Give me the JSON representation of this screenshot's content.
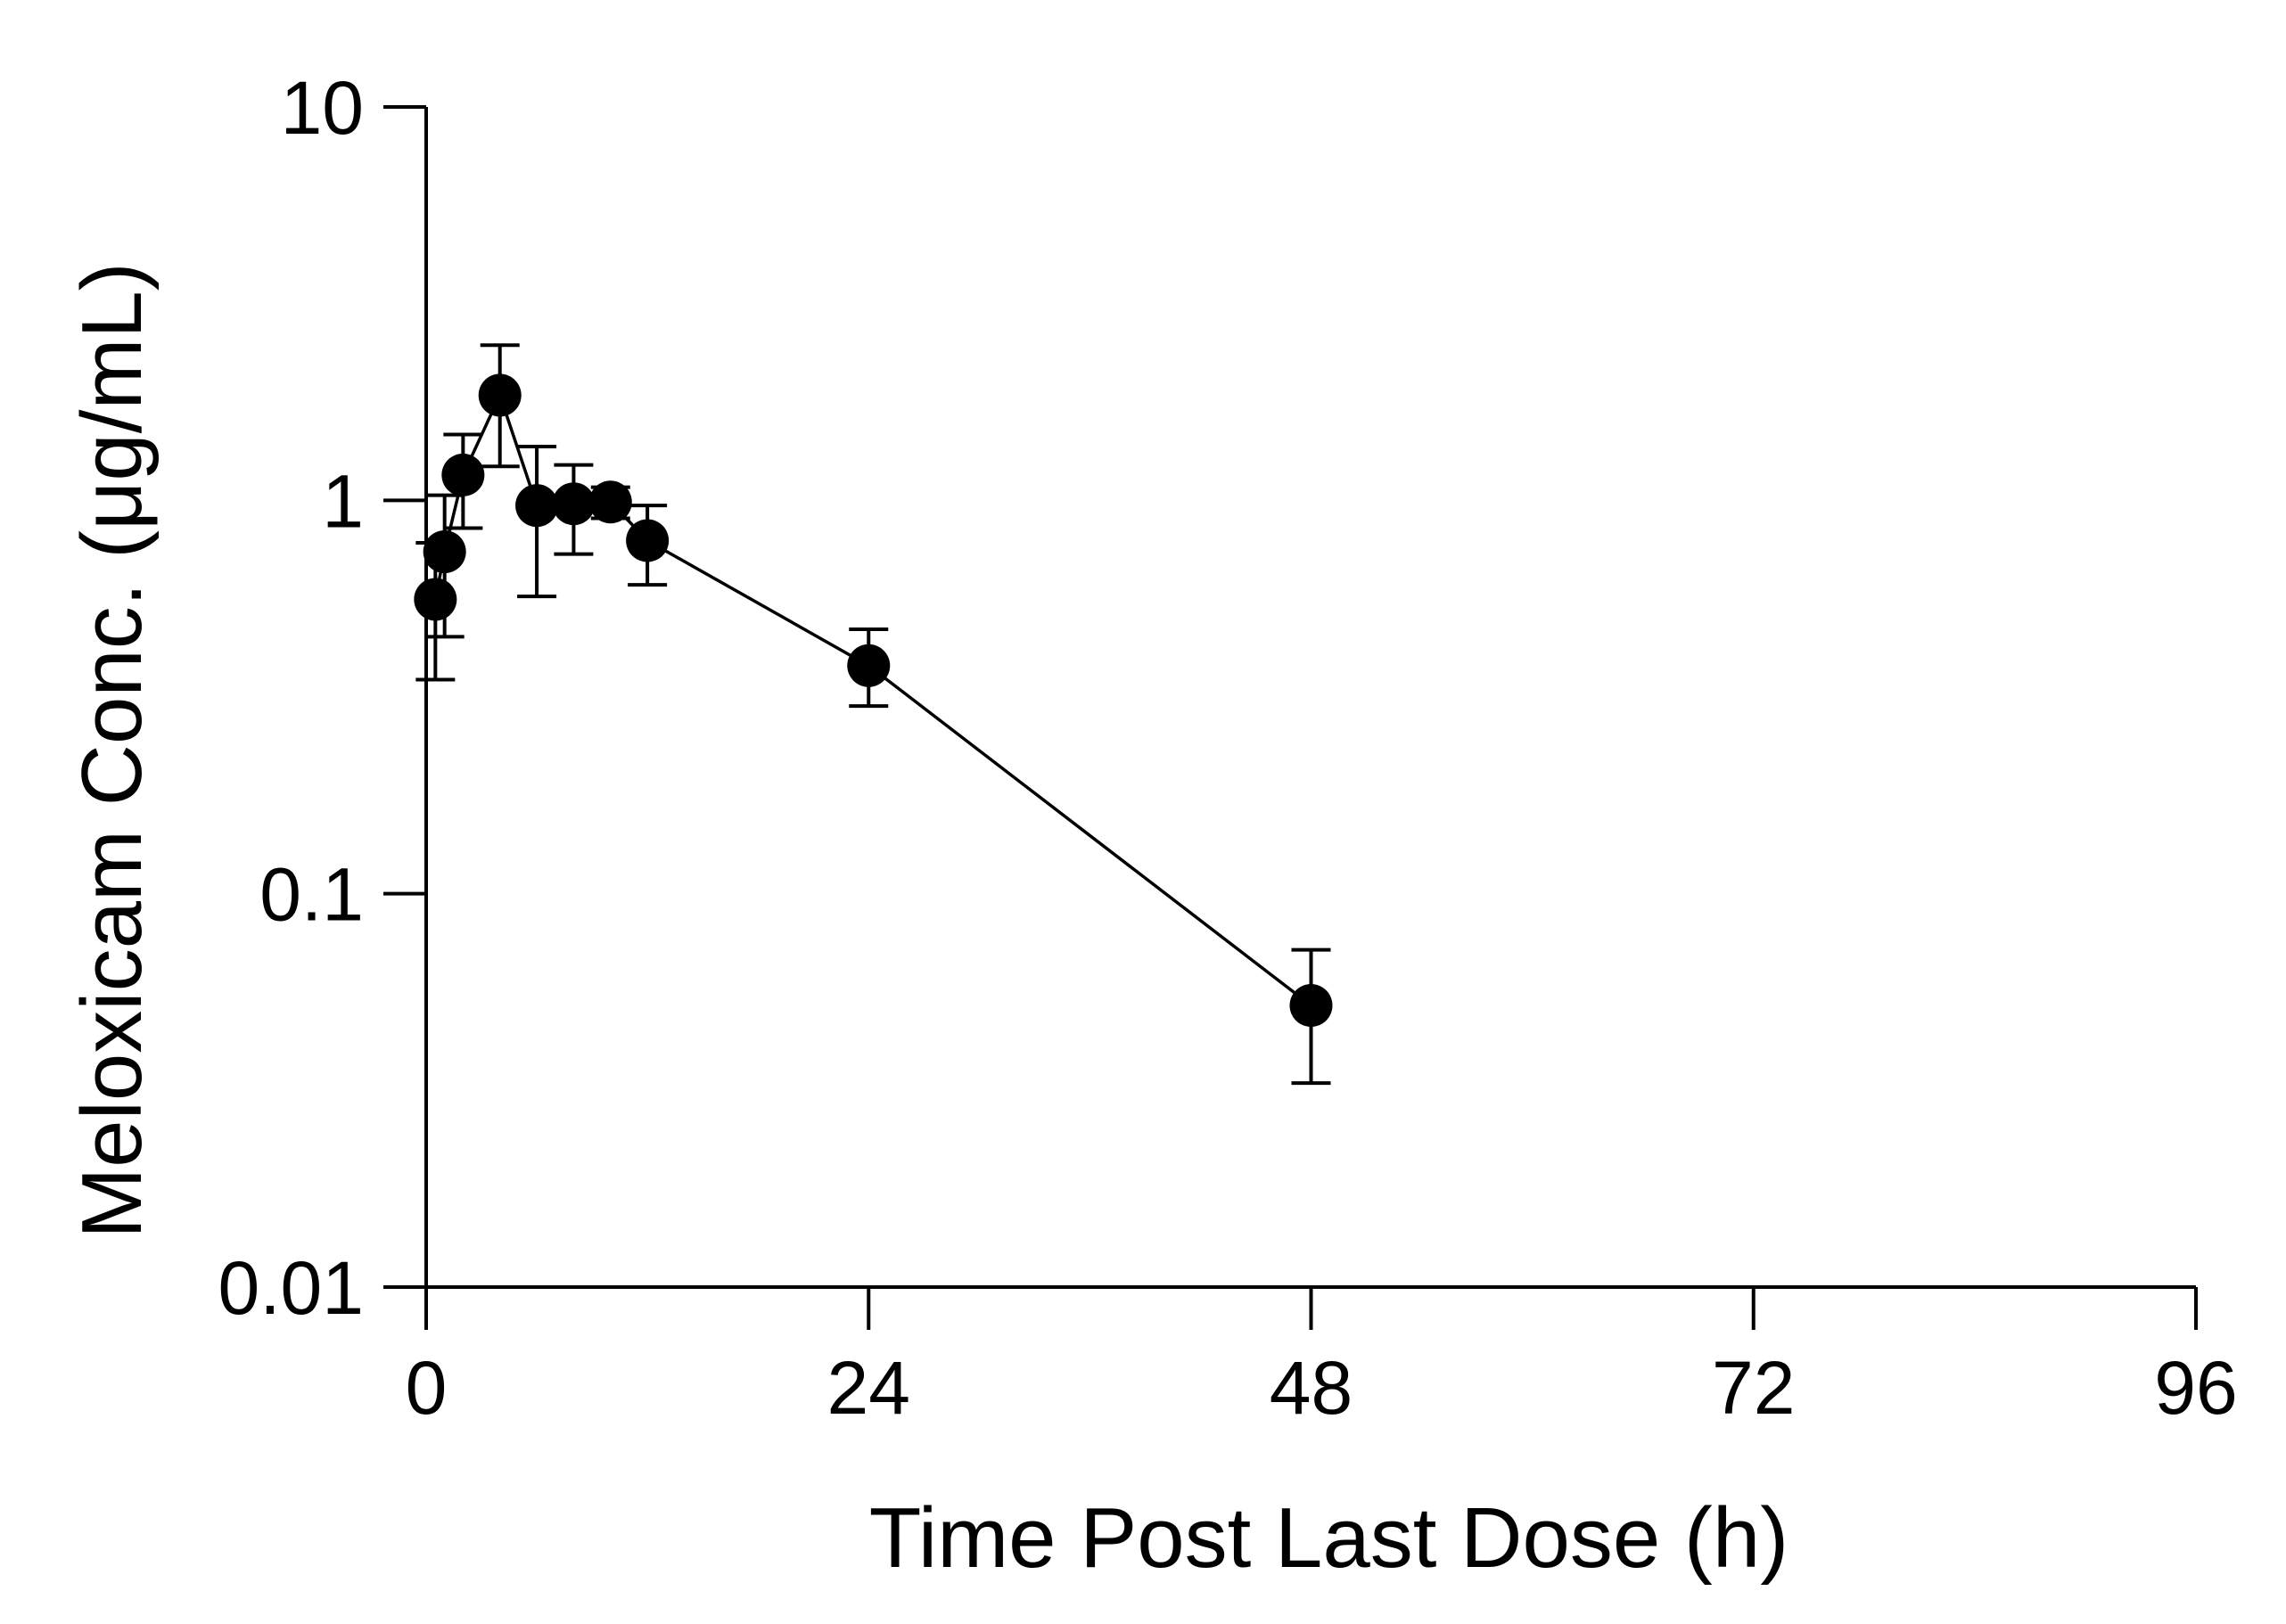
{
  "chart_data": {
    "type": "scatter",
    "title": "",
    "xlabel": "Time Post Last Dose (h)",
    "ylabel": "Meloxicam Conc. (μg/mL)",
    "xlim": [
      0,
      96
    ],
    "ylim": [
      0.01,
      10
    ],
    "yscale": "log",
    "x_ticks": [
      0,
      24,
      48,
      72,
      96
    ],
    "x_tick_labels": [
      "0",
      "24",
      "48",
      "72",
      "96"
    ],
    "y_ticks": [
      0.01,
      0.1,
      1,
      10
    ],
    "y_tick_labels": [
      "0.01",
      "0.1",
      "1",
      "10"
    ],
    "grid": false,
    "legend": "none",
    "series": [
      {
        "name": "Meloxicam",
        "color": "#000000",
        "marker": "circle",
        "line": true,
        "points": [
          {
            "x": 0.5,
            "y": 0.56,
            "lo": 0.35,
            "hi": 0.78
          },
          {
            "x": 1,
            "y": 0.74,
            "lo": 0.45,
            "hi": 1.03
          },
          {
            "x": 2,
            "y": 1.16,
            "lo": 0.85,
            "hi": 1.47
          },
          {
            "x": 4,
            "y": 1.85,
            "lo": 1.22,
            "hi": 2.48
          },
          {
            "x": 6,
            "y": 0.97,
            "lo": 0.57,
            "hi": 1.37
          },
          {
            "x": 8,
            "y": 0.98,
            "lo": 0.73,
            "hi": 1.23
          },
          {
            "x": 10,
            "y": 0.99,
            "lo": 0.9,
            "hi": 1.08
          },
          {
            "x": 12,
            "y": 0.79,
            "lo": 0.61,
            "hi": 0.97
          },
          {
            "x": 24,
            "y": 0.38,
            "lo": 0.3,
            "hi": 0.47
          },
          {
            "x": 48,
            "y": 0.052,
            "lo": 0.033,
            "hi": 0.072
          }
        ]
      }
    ]
  }
}
